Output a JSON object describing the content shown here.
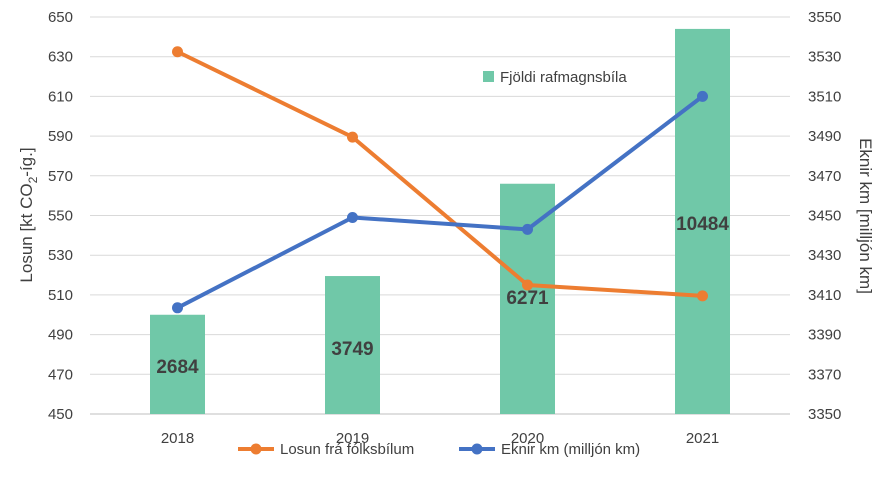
{
  "chart_data": {
    "type": "bar",
    "categories": [
      "2018",
      "2019",
      "2020",
      "2021"
    ],
    "y_left": {
      "label_prefix": "Losun [kt CO",
      "label_sub": "2",
      "label_suffix": "-íg.]",
      "lim": [
        450,
        650
      ],
      "ticks": [
        "450",
        "470",
        "490",
        "510",
        "530",
        "550",
        "570",
        "590",
        "610",
        "630",
        "650"
      ]
    },
    "y_right": {
      "label": "Eknir km [milljón km]",
      "lim": [
        3350,
        3550
      ],
      "ticks": [
        "3350",
        "3370",
        "3390",
        "3410",
        "3430",
        "3450",
        "3470",
        "3490",
        "3510",
        "3530",
        "3550"
      ]
    },
    "bars": {
      "name": "Fjöldi rafmagnsbíla",
      "values": [
        2684,
        3749,
        6271,
        10484
      ],
      "labels": [
        "2684",
        "3749",
        "6271",
        "10484"
      ],
      "plotted_on_left_axis": [
        500,
        519.5,
        566,
        644
      ],
      "color": "#70c8a8"
    },
    "series": [
      {
        "name": "Losun frá fólksbílum",
        "axis": "left",
        "values": [
          632.5,
          589.5,
          515,
          509.5
        ],
        "color": "#ed7d31"
      },
      {
        "name": "Eknir km (milljón km)",
        "axis": "right",
        "values": [
          3403.5,
          3449,
          3443,
          3510
        ],
        "color": "#4472c4"
      }
    ],
    "grid": true,
    "legend_position": "bottom"
  }
}
